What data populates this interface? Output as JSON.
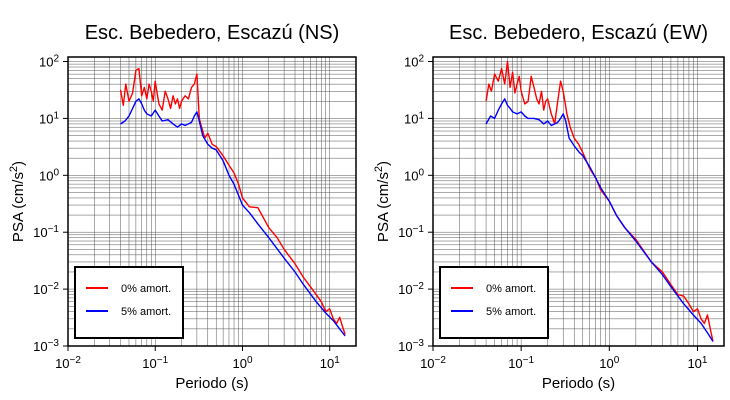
{
  "chart_data": [
    {
      "type": "line",
      "title": "Esc. Bebedero, Escazú (NS)",
      "xlabel": "Periodo (s)",
      "ylabel_main": "PSA (cm/s",
      "ylabel_sup": "2",
      "ylabel_tail": ")",
      "xscale": "log",
      "yscale": "log",
      "xlim": [
        0.01,
        20
      ],
      "ylim": [
        0.001,
        120
      ],
      "grid": true,
      "legend_position": "lower-left",
      "x_ticks": [
        {
          "base": "10",
          "exp": "−2",
          "value": 0.01
        },
        {
          "base": "10",
          "exp": "−1",
          "value": 0.1
        },
        {
          "base": "10",
          "exp": "0",
          "value": 1
        },
        {
          "base": "10",
          "exp": "1",
          "value": 10
        }
      ],
      "y_ticks": [
        {
          "base": "10",
          "exp": "−3",
          "value": 0.001
        },
        {
          "base": "10",
          "exp": "−2",
          "value": 0.01
        },
        {
          "base": "10",
          "exp": "−1",
          "value": 0.1
        },
        {
          "base": "10",
          "exp": "0",
          "value": 1
        },
        {
          "base": "10",
          "exp": "1",
          "value": 10
        },
        {
          "base": "10",
          "exp": "2",
          "value": 100
        }
      ],
      "series": [
        {
          "name": "0% amort.",
          "color": "#ff0000",
          "x": [
            0.04,
            0.043,
            0.046,
            0.05,
            0.055,
            0.06,
            0.065,
            0.07,
            0.075,
            0.08,
            0.085,
            0.09,
            0.095,
            0.1,
            0.11,
            0.12,
            0.13,
            0.14,
            0.15,
            0.16,
            0.17,
            0.18,
            0.19,
            0.2,
            0.22,
            0.24,
            0.26,
            0.28,
            0.3,
            0.32,
            0.34,
            0.37,
            0.4,
            0.45,
            0.5,
            0.6,
            0.7,
            0.8,
            0.9,
            1.0,
            1.2,
            1.5,
            2.0,
            2.5,
            3.0,
            4.0,
            5.0,
            6.0,
            7.0,
            8.0,
            9.0,
            10.0,
            11.0,
            12.0,
            13.0,
            14.0,
            15.0
          ],
          "y": [
            32,
            17,
            40,
            20,
            28,
            70,
            75,
            25,
            35,
            22,
            40,
            30,
            20,
            45,
            18,
            14,
            30,
            22,
            15,
            25,
            18,
            22,
            15,
            20,
            25,
            22,
            35,
            40,
            60,
            10,
            7,
            4.5,
            5.5,
            3.5,
            3.2,
            2.2,
            1.5,
            1.1,
            0.7,
            0.4,
            0.28,
            0.27,
            0.12,
            0.08,
            0.05,
            0.028,
            0.016,
            0.011,
            0.008,
            0.006,
            0.004,
            0.0045,
            0.003,
            0.0025,
            0.0032,
            0.0022,
            0.0016
          ]
        },
        {
          "name": "5% amort.",
          "color": "#0000ff",
          "x": [
            0.04,
            0.045,
            0.05,
            0.055,
            0.06,
            0.065,
            0.07,
            0.075,
            0.08,
            0.09,
            0.1,
            0.11,
            0.12,
            0.14,
            0.16,
            0.18,
            0.2,
            0.22,
            0.24,
            0.26,
            0.28,
            0.3,
            0.32,
            0.35,
            0.4,
            0.45,
            0.5,
            0.6,
            0.7,
            0.8,
            1.0,
            1.2,
            1.5,
            2.0,
            3.0,
            4.0,
            5.0,
            7.0,
            9.0,
            11.0,
            13.0,
            15.0
          ],
          "y": [
            8,
            9,
            11,
            15,
            20,
            22,
            18,
            14,
            12,
            11,
            14,
            11,
            9,
            9.5,
            8,
            7,
            8,
            7.5,
            8,
            8.5,
            11,
            13,
            9,
            5,
            3.5,
            3,
            2.8,
            1.8,
            1.0,
            0.7,
            0.3,
            0.22,
            0.14,
            0.08,
            0.035,
            0.02,
            0.012,
            0.006,
            0.0038,
            0.0028,
            0.002,
            0.0015
          ]
        }
      ]
    },
    {
      "type": "line",
      "title": "Esc. Bebedero, Escazú (EW)",
      "xlabel": "Periodo (s)",
      "ylabel_main": "PSA (cm/s",
      "ylabel_sup": "2",
      "ylabel_tail": ")",
      "xscale": "log",
      "yscale": "log",
      "xlim": [
        0.01,
        20
      ],
      "ylim": [
        0.001,
        120
      ],
      "grid": true,
      "legend_position": "lower-left",
      "x_ticks": [
        {
          "base": "10",
          "exp": "−2",
          "value": 0.01
        },
        {
          "base": "10",
          "exp": "−1",
          "value": 0.1
        },
        {
          "base": "10",
          "exp": "0",
          "value": 1
        },
        {
          "base": "10",
          "exp": "1",
          "value": 10
        }
      ],
      "y_ticks": [
        {
          "base": "10",
          "exp": "−3",
          "value": 0.001
        },
        {
          "base": "10",
          "exp": "−2",
          "value": 0.01
        },
        {
          "base": "10",
          "exp": "−1",
          "value": 0.1
        },
        {
          "base": "10",
          "exp": "0",
          "value": 1
        },
        {
          "base": "10",
          "exp": "1",
          "value": 10
        },
        {
          "base": "10",
          "exp": "2",
          "value": 100
        }
      ],
      "series": [
        {
          "name": "0% amort.",
          "color": "#ff0000",
          "x": [
            0.04,
            0.043,
            0.046,
            0.05,
            0.055,
            0.06,
            0.065,
            0.07,
            0.075,
            0.08,
            0.085,
            0.09,
            0.095,
            0.1,
            0.11,
            0.12,
            0.13,
            0.14,
            0.15,
            0.16,
            0.17,
            0.18,
            0.19,
            0.2,
            0.22,
            0.24,
            0.26,
            0.28,
            0.3,
            0.33,
            0.36,
            0.4,
            0.45,
            0.5,
            0.6,
            0.7,
            0.8,
            1.0,
            1.2,
            1.5,
            2.0,
            2.5,
            3.0,
            4.0,
            5.0,
            6.0,
            7.0,
            8.0,
            9.0,
            10.0,
            11.0,
            12.0,
            13.0,
            14.0,
            15.0
          ],
          "y": [
            20,
            40,
            30,
            60,
            45,
            75,
            40,
            100,
            35,
            65,
            28,
            40,
            55,
            30,
            18,
            20,
            55,
            35,
            22,
            18,
            30,
            14,
            20,
            22,
            12,
            8,
            20,
            45,
            30,
            12,
            7,
            4.5,
            3.5,
            2.5,
            1.3,
            0.9,
            0.55,
            0.35,
            0.2,
            0.12,
            0.075,
            0.045,
            0.03,
            0.02,
            0.012,
            0.008,
            0.0075,
            0.0055,
            0.004,
            0.0045,
            0.003,
            0.0025,
            0.0035,
            0.002,
            0.0012
          ]
        },
        {
          "name": "5% amort.",
          "color": "#0000ff",
          "x": [
            0.04,
            0.045,
            0.05,
            0.055,
            0.06,
            0.065,
            0.07,
            0.075,
            0.08,
            0.09,
            0.1,
            0.11,
            0.12,
            0.14,
            0.16,
            0.18,
            0.2,
            0.22,
            0.24,
            0.26,
            0.28,
            0.3,
            0.32,
            0.35,
            0.4,
            0.45,
            0.5,
            0.6,
            0.7,
            0.8,
            1.0,
            1.2,
            1.5,
            2.0,
            3.0,
            4.0,
            5.0,
            7.0,
            9.0,
            11.0,
            13.0,
            15.0
          ],
          "y": [
            8,
            11,
            10,
            14,
            18,
            22,
            17,
            15,
            13,
            12,
            13,
            11,
            10,
            10,
            9.5,
            8,
            9,
            7.5,
            8,
            8.5,
            10,
            12,
            9,
            4.5,
            3.3,
            2.6,
            2.2,
            1.4,
            0.9,
            0.6,
            0.35,
            0.2,
            0.12,
            0.07,
            0.03,
            0.018,
            0.011,
            0.0055,
            0.0035,
            0.0025,
            0.0017,
            0.0012
          ]
        }
      ]
    }
  ]
}
